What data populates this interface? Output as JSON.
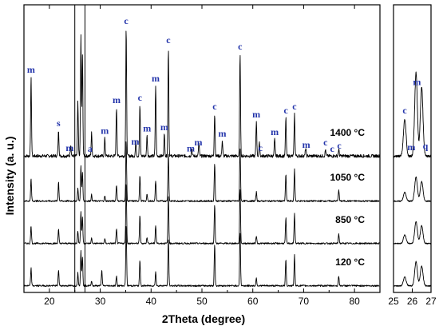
{
  "chart_data": {
    "type": "line",
    "xlabel": "2Theta (degree)",
    "ylabel": "Intensity (a. u.)",
    "xlim": [
      15,
      85
    ],
    "x_ticks": [
      "20",
      "30",
      "40",
      "50",
      "60",
      "70",
      "80"
    ],
    "inset_xlim": [
      25,
      27
    ],
    "inset_x_ticks": [
      "25",
      "26",
      "27"
    ],
    "highlight_band": [
      25.0,
      27.0
    ],
    "series": [
      {
        "name": "1400 °C",
        "peaks": [
          [
            16.4,
            0.62
          ],
          [
            21.8,
            0.2
          ],
          [
            24.2,
            0.09
          ],
          [
            25.6,
            0.42
          ],
          [
            26.2,
            0.95
          ],
          [
            26.5,
            0.78
          ],
          [
            28.3,
            0.18
          ],
          [
            30.9,
            0.14
          ],
          [
            33.2,
            0.38
          ],
          [
            35.1,
            1.0
          ],
          [
            37.0,
            0.11
          ],
          [
            37.8,
            0.4
          ],
          [
            39.2,
            0.16
          ],
          [
            40.9,
            0.55
          ],
          [
            42.6,
            0.17
          ],
          [
            43.4,
            0.85
          ],
          [
            48.0,
            0.06
          ],
          [
            49.4,
            0.1
          ],
          [
            52.5,
            0.33
          ],
          [
            54.0,
            0.12
          ],
          [
            57.5,
            0.8
          ],
          [
            60.7,
            0.27
          ],
          [
            61.3,
            0.1
          ],
          [
            64.3,
            0.13
          ],
          [
            66.5,
            0.3
          ],
          [
            68.2,
            0.33
          ],
          [
            70.4,
            0.06
          ],
          [
            74.3,
            0.05
          ],
          [
            76.9,
            0.05
          ]
        ]
      },
      {
        "name": "1050 °C",
        "peaks": [
          [
            16.4,
            0.35
          ],
          [
            21.8,
            0.3
          ],
          [
            25.6,
            0.2
          ],
          [
            26.2,
            0.55
          ],
          [
            26.5,
            0.45
          ],
          [
            28.3,
            0.1
          ],
          [
            30.9,
            0.08
          ],
          [
            33.2,
            0.25
          ],
          [
            35.1,
            0.95
          ],
          [
            37.8,
            0.4
          ],
          [
            39.2,
            0.1
          ],
          [
            40.9,
            0.32
          ],
          [
            43.4,
            0.75
          ],
          [
            52.5,
            0.6
          ],
          [
            57.5,
            0.85
          ],
          [
            60.7,
            0.14
          ],
          [
            66.5,
            0.42
          ],
          [
            68.2,
            0.5
          ],
          [
            76.9,
            0.18
          ]
        ]
      },
      {
        "name": "850 °C",
        "peaks": [
          [
            16.4,
            0.28
          ],
          [
            21.8,
            0.22
          ],
          [
            25.6,
            0.2
          ],
          [
            26.2,
            0.5
          ],
          [
            26.5,
            0.4
          ],
          [
            28.3,
            0.08
          ],
          [
            30.9,
            0.07
          ],
          [
            33.2,
            0.22
          ],
          [
            35.1,
            0.95
          ],
          [
            37.8,
            0.45
          ],
          [
            39.2,
            0.1
          ],
          [
            40.9,
            0.28
          ],
          [
            43.4,
            0.75
          ],
          [
            52.5,
            0.62
          ],
          [
            57.5,
            0.85
          ],
          [
            60.7,
            0.12
          ],
          [
            66.5,
            0.4
          ],
          [
            68.2,
            0.48
          ],
          [
            76.9,
            0.15
          ]
        ]
      },
      {
        "name": "120 °C",
        "peaks": [
          [
            16.4,
            0.28
          ],
          [
            21.8,
            0.25
          ],
          [
            25.6,
            0.2
          ],
          [
            26.2,
            0.55
          ],
          [
            26.5,
            0.45
          ],
          [
            28.3,
            0.08
          ],
          [
            30.3,
            0.25
          ],
          [
            33.2,
            0.15
          ],
          [
            35.1,
            0.95
          ],
          [
            37.8,
            0.4
          ],
          [
            40.9,
            0.22
          ],
          [
            43.4,
            0.75
          ],
          [
            52.5,
            0.65
          ],
          [
            57.5,
            0.85
          ],
          [
            60.7,
            0.12
          ],
          [
            66.5,
            0.42
          ],
          [
            68.2,
            0.48
          ],
          [
            76.9,
            0.15
          ]
        ]
      }
    ],
    "annotations": [
      {
        "text": "m",
        "x": 16.4
      },
      {
        "text": "s",
        "x": 21.8
      },
      {
        "text": "m",
        "x": 24.0
      },
      {
        "text": "a",
        "x": 28.0
      },
      {
        "text": "m",
        "x": 30.9
      },
      {
        "text": "m",
        "x": 33.2
      },
      {
        "text": "c",
        "x": 35.1
      },
      {
        "text": "m",
        "x": 36.9
      },
      {
        "text": "c",
        "x": 37.8
      },
      {
        "text": "m",
        "x": 39.2
      },
      {
        "text": "m",
        "x": 40.9
      },
      {
        "text": "m",
        "x": 42.6
      },
      {
        "text": "c",
        "x": 43.4
      },
      {
        "text": "m",
        "x": 47.8
      },
      {
        "text": "m",
        "x": 49.3
      },
      {
        "text": "c",
        "x": 52.5
      },
      {
        "text": "m",
        "x": 54.0
      },
      {
        "text": "c",
        "x": 57.5
      },
      {
        "text": "m",
        "x": 60.7
      },
      {
        "text": "c",
        "x": 61.5
      },
      {
        "text": "m",
        "x": 64.3
      },
      {
        "text": "c",
        "x": 66.5
      },
      {
        "text": "c",
        "x": 68.2
      },
      {
        "text": "m",
        "x": 70.5
      },
      {
        "text": "c",
        "x": 74.3
      },
      {
        "text": "c",
        "x": 75.6
      },
      {
        "text": "c",
        "x": 77.0
      }
    ],
    "inset_annotations": [
      {
        "text": "c",
        "x": 25.6
      },
      {
        "text": "m",
        "x": 25.95
      },
      {
        "text": "m",
        "x": 26.25
      },
      {
        "text": "q",
        "x": 26.7
      }
    ],
    "colors": {
      "trace": "#000000",
      "annotation": "#2233aa"
    }
  }
}
